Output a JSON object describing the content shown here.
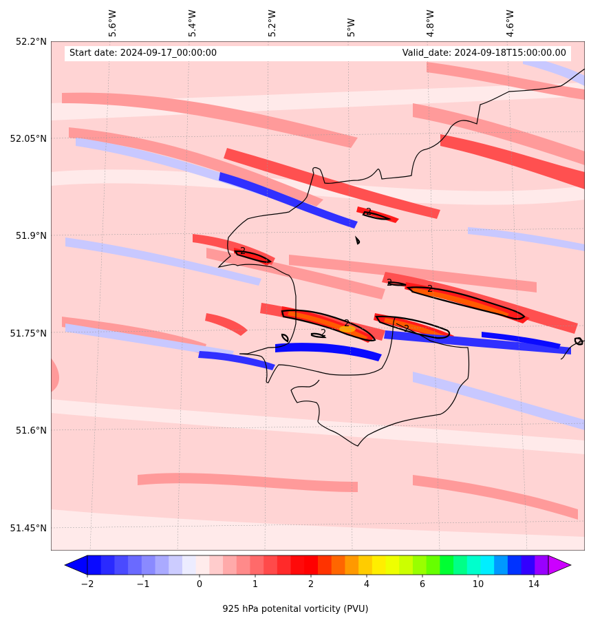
{
  "header": {
    "start_date": "Start date: 2024-09-17_00:00:00",
    "valid_date": "Valid_date: 2024-09-18T15:00:00.00"
  },
  "axes": {
    "lat_labels": [
      "52.2°N",
      "52.05°N",
      "51.9°N",
      "51.75°N",
      "51.6°N",
      "51.45°N"
    ],
    "lon_labels": [
      "5.6°W",
      "5.4°W",
      "5.2°W",
      "5°W",
      "4.8°W",
      "4.6°W"
    ]
  },
  "contour_label": "2",
  "colorbar": {
    "label": "925 hPa potenital vorticity (PVU)",
    "ticks": [
      "−2",
      "−1",
      "0",
      "1",
      "2",
      "4",
      "6",
      "10",
      "14"
    ],
    "colors": [
      "#0a0aff",
      "#2a2aff",
      "#4a4aff",
      "#6a6aff",
      "#8a8aff",
      "#aaaaff",
      "#ccccff",
      "#ececff",
      "#ffecec",
      "#ffcccc",
      "#ffaaaa",
      "#ff8a8a",
      "#ff6a6a",
      "#ff4a4a",
      "#ff2a2a",
      "#ff0a0a",
      "#ff0000",
      "#ff3300",
      "#ff6600",
      "#ff9900",
      "#ffcc00",
      "#ffee00",
      "#eeff00",
      "#ccff00",
      "#99ff00",
      "#66ff00",
      "#00ff33",
      "#00ff88",
      "#00ffcc",
      "#00eeff",
      "#0099ff",
      "#0033ff",
      "#3300ff",
      "#9900ff"
    ],
    "under_color": "#0000ff",
    "over_color": "#cc00ff"
  },
  "palette": {
    "base": "#ffd4d4",
    "light": "#ffeaea",
    "mid": "#ff9a9a",
    "strong": "#ff5050",
    "red": "#ff1a1a",
    "blue": "#3030ff",
    "deep_blue": "#0a0aff",
    "pale_blue": "#c8c8ff",
    "orange": "#ff5a00",
    "amber": "#ffa000"
  }
}
